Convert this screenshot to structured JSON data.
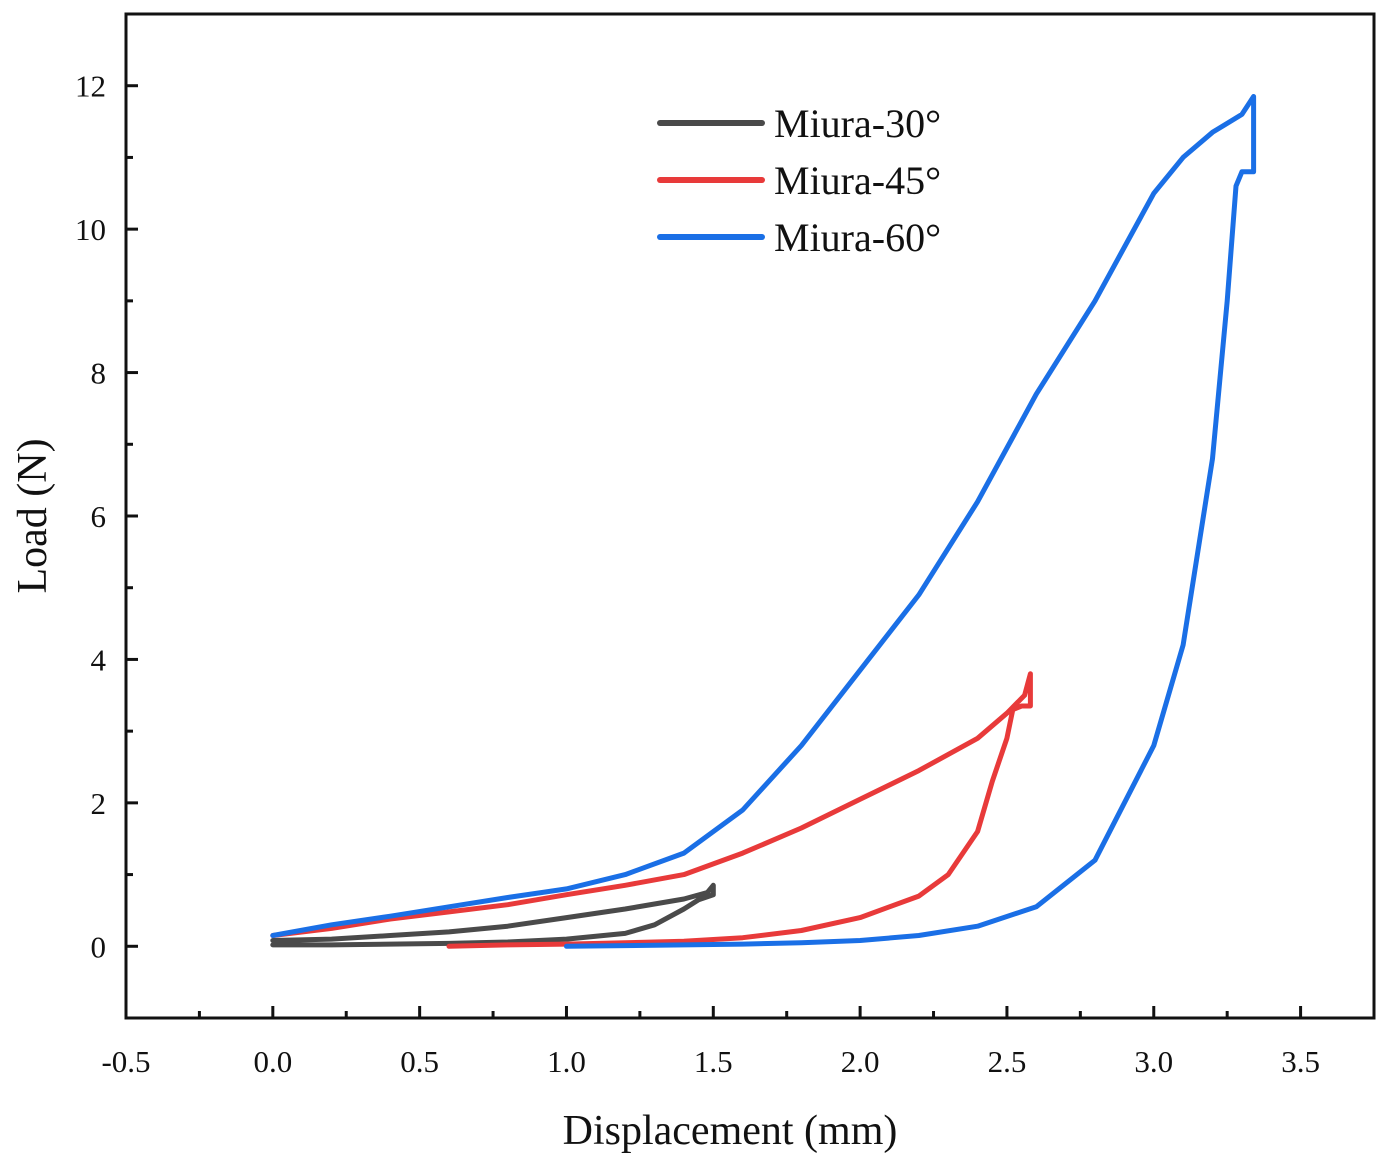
{
  "chart_data": {
    "type": "line",
    "title": "",
    "xlabel": "Displacement (mm)",
    "ylabel": "Load (N)",
    "xlim": [
      -0.5,
      3.75
    ],
    "ylim": [
      -1,
      13
    ],
    "x_ticks": [
      -0.5,
      0.0,
      0.5,
      1.0,
      1.5,
      2.0,
      2.5,
      3.0,
      3.5
    ],
    "x_tick_labels": [
      "-0.5",
      "0.0",
      "0.5",
      "1.0",
      "1.5",
      "2.0",
      "2.5",
      "3.0",
      "3.5"
    ],
    "y_ticks": [
      0,
      2,
      4,
      6,
      8,
      10,
      12
    ],
    "y_tick_labels": [
      "0",
      "2",
      "4",
      "6",
      "8",
      "10",
      "12"
    ],
    "grid": false,
    "legend_position": "top-center",
    "series": [
      {
        "name": "Miura-30°",
        "color": "#4a4a4a",
        "x": [
          0.0,
          0.2,
          0.4,
          0.6,
          0.8,
          1.0,
          1.2,
          1.4,
          1.48,
          1.5,
          1.5,
          1.45,
          1.4,
          1.3,
          1.2,
          1.0,
          0.8,
          0.6,
          0.4,
          0.2,
          0.0
        ],
        "y": [
          0.08,
          0.1,
          0.15,
          0.2,
          0.28,
          0.4,
          0.52,
          0.66,
          0.75,
          0.85,
          0.72,
          0.65,
          0.52,
          0.3,
          0.18,
          0.1,
          0.06,
          0.04,
          0.03,
          0.02,
          0.02
        ]
      },
      {
        "name": "Miura-45°",
        "color": "#e83a3a",
        "x": [
          0.0,
          0.2,
          0.4,
          0.6,
          0.8,
          1.0,
          1.2,
          1.4,
          1.6,
          1.8,
          2.0,
          2.2,
          2.4,
          2.5,
          2.56,
          2.58,
          2.58,
          2.55,
          2.52,
          2.5,
          2.45,
          2.4,
          2.3,
          2.2,
          2.0,
          1.8,
          1.6,
          1.4,
          1.2,
          1.0,
          0.8,
          0.6
        ],
        "y": [
          0.15,
          0.25,
          0.38,
          0.48,
          0.58,
          0.72,
          0.85,
          1.0,
          1.3,
          1.65,
          2.05,
          2.45,
          2.9,
          3.25,
          3.5,
          3.8,
          3.35,
          3.35,
          3.3,
          2.9,
          2.3,
          1.6,
          1.0,
          0.7,
          0.4,
          0.22,
          0.12,
          0.07,
          0.05,
          0.03,
          0.02,
          0.0
        ]
      },
      {
        "name": "Miura-60°",
        "color": "#1a6fe6",
        "x": [
          0.0,
          0.2,
          0.4,
          0.6,
          0.8,
          1.0,
          1.2,
          1.4,
          1.6,
          1.8,
          2.0,
          2.2,
          2.4,
          2.6,
          2.8,
          3.0,
          3.1,
          3.2,
          3.3,
          3.34,
          3.34,
          3.3,
          3.28,
          3.25,
          3.2,
          3.1,
          3.0,
          2.8,
          2.6,
          2.4,
          2.2,
          2.0,
          1.8,
          1.6,
          1.4,
          1.2,
          1.0
        ],
        "y": [
          0.15,
          0.3,
          0.42,
          0.55,
          0.68,
          0.8,
          1.0,
          1.3,
          1.9,
          2.8,
          3.85,
          4.9,
          6.2,
          7.7,
          9.0,
          10.5,
          11.0,
          11.35,
          11.6,
          11.85,
          10.8,
          10.8,
          10.6,
          9.0,
          6.8,
          4.2,
          2.8,
          1.2,
          0.55,
          0.28,
          0.15,
          0.08,
          0.05,
          0.03,
          0.02,
          0.01,
          0.0
        ]
      }
    ]
  }
}
